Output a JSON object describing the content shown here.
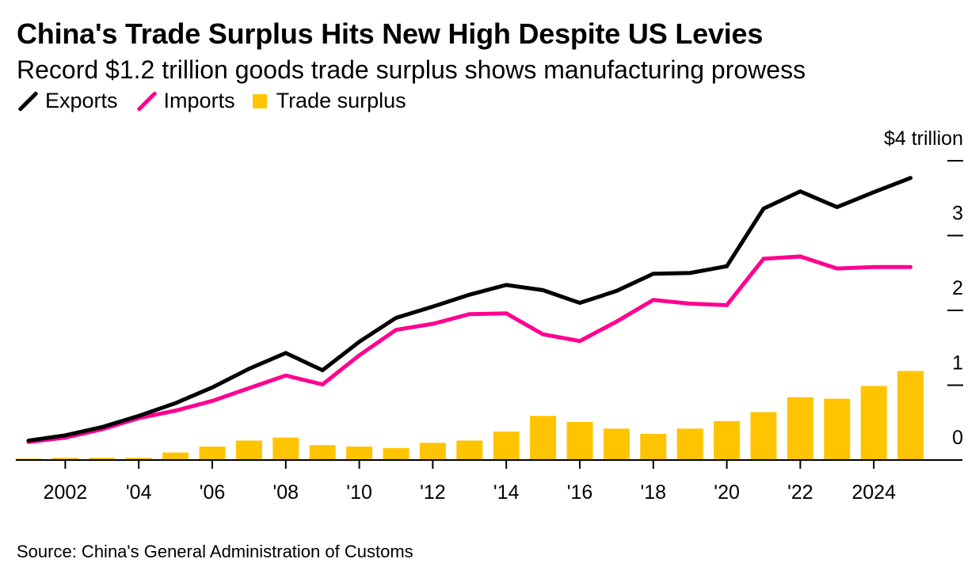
{
  "header": {
    "title": "China's Trade Surplus Hits New High Despite US Levies",
    "subtitle": "Record $1.2 trillion goods trade surplus shows manufacturing prowess"
  },
  "legend": [
    {
      "label": "Exports",
      "type": "line",
      "color": "#000000"
    },
    {
      "label": "Imports",
      "type": "line",
      "color": "#ff0090"
    },
    {
      "label": "Trade surplus",
      "type": "bar",
      "color": "#ffc400"
    }
  ],
  "footer": {
    "source": "Source: China's General Administration of Customs"
  },
  "chart_data": {
    "type": "bar+line",
    "title": "China's Trade Surplus Hits New High Despite US Levies",
    "subtitle": "Record $1.2 trillion goods trade surplus shows manufacturing prowess",
    "xlabel": "",
    "ylabel": "$ trillion",
    "ylim": [
      0,
      4
    ],
    "y_ticks": [
      0,
      1,
      2,
      3,
      4
    ],
    "y_tick_labels": [
      "0",
      "1",
      "2",
      "3",
      "$4 trillion"
    ],
    "y_axis_position": "right",
    "x_ticks": [
      2002,
      2004,
      2006,
      2008,
      2010,
      2012,
      2014,
      2016,
      2018,
      2020,
      2022,
      2024
    ],
    "x_tick_labels": [
      "2002",
      "'04",
      "'06",
      "'08",
      "'10",
      "'12",
      "'14",
      "'16",
      "'18",
      "'20",
      "'22",
      "2024"
    ],
    "grid": false,
    "legend_position": "top-left",
    "x": [
      2001,
      2002,
      2003,
      2004,
      2005,
      2006,
      2007,
      2008,
      2009,
      2010,
      2011,
      2012,
      2013,
      2014,
      2015,
      2016,
      2017,
      2018,
      2019,
      2020,
      2021,
      2022,
      2023,
      2024,
      2025
    ],
    "series": [
      {
        "name": "Exports",
        "type": "line",
        "color": "#000000",
        "values": [
          0.26,
          0.33,
          0.44,
          0.59,
          0.76,
          0.97,
          1.22,
          1.43,
          1.2,
          1.58,
          1.9,
          2.05,
          2.21,
          2.34,
          2.27,
          2.1,
          2.26,
          2.49,
          2.5,
          2.59,
          3.36,
          3.59,
          3.38,
          3.58,
          3.77
        ]
      },
      {
        "name": "Imports",
        "type": "line",
        "color": "#ff0090",
        "values": [
          0.24,
          0.3,
          0.41,
          0.56,
          0.66,
          0.79,
          0.96,
          1.13,
          1.01,
          1.4,
          1.74,
          1.82,
          1.95,
          1.96,
          1.68,
          1.59,
          1.85,
          2.14,
          2.09,
          2.07,
          2.69,
          2.72,
          2.56,
          2.58,
          2.58
        ]
      },
      {
        "name": "Trade surplus",
        "type": "bar",
        "color": "#ffc400",
        "values": [
          0.02,
          0.03,
          0.03,
          0.03,
          0.1,
          0.18,
          0.26,
          0.3,
          0.2,
          0.18,
          0.16,
          0.23,
          0.26,
          0.38,
          0.59,
          0.51,
          0.42,
          0.35,
          0.42,
          0.52,
          0.64,
          0.84,
          0.82,
          0.99,
          1.19
        ]
      }
    ]
  }
}
